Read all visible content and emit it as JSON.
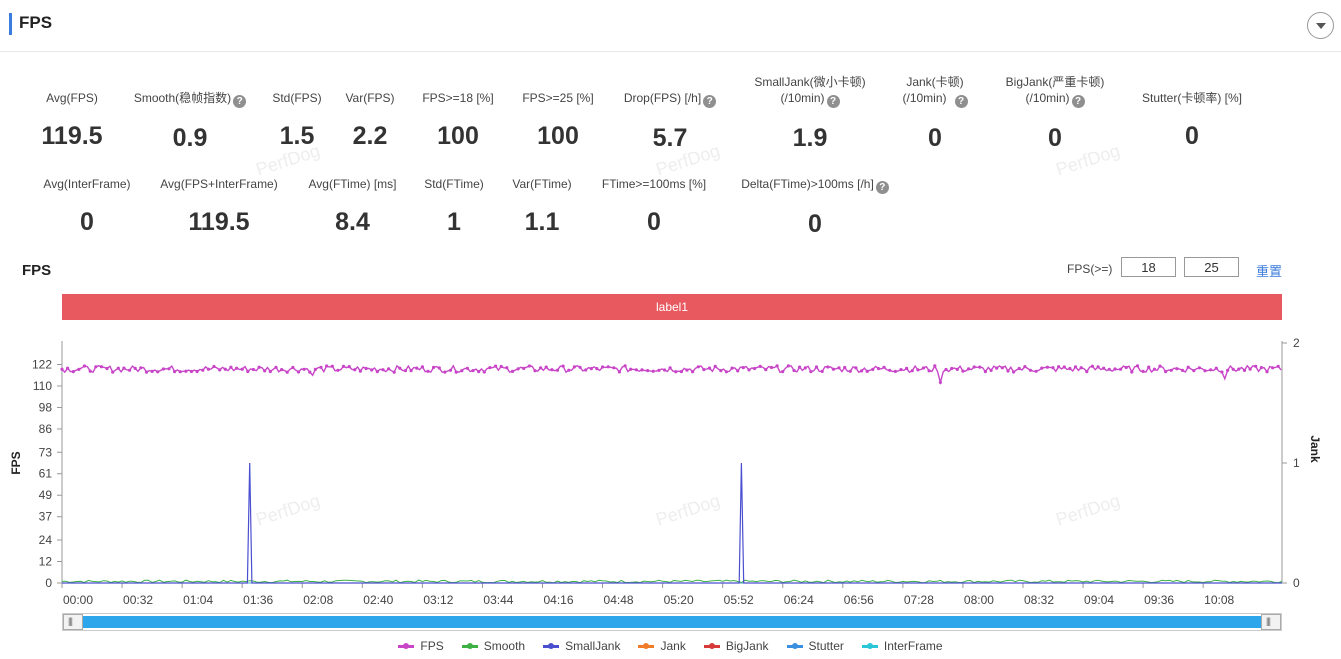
{
  "header": {
    "title": "FPS"
  },
  "stats_row1": [
    {
      "label": "Avg(FPS)",
      "value": "119.5",
      "help": false
    },
    {
      "label": "Smooth(稳帧指数)",
      "value": "0.9",
      "help": true
    },
    {
      "label": "Std(FPS)",
      "value": "1.5",
      "help": false
    },
    {
      "label": "Var(FPS)",
      "value": "2.2",
      "help": false
    },
    {
      "label": "FPS>=18 [%]",
      "value": "100",
      "help": false
    },
    {
      "label": "FPS>=25 [%]",
      "value": "100",
      "help": false
    },
    {
      "label": "Drop(FPS) [/h]",
      "value": "5.7",
      "help": true
    },
    {
      "label": "SmallJank(微小卡顿)",
      "label2": "(/10min)",
      "value": "1.9",
      "help": true
    },
    {
      "label": "Jank(卡顿)",
      "label2": "(/10min)",
      "value": "0",
      "help": true
    },
    {
      "label": "BigJank(严重卡顿)",
      "label2": "(/10min)",
      "value": "0",
      "help": true
    },
    {
      "label": "Stutter(卡顿率) [%]",
      "value": "0",
      "help": false
    }
  ],
  "stats_row2": [
    {
      "label": "Avg(InterFrame)",
      "value": "0",
      "help": false
    },
    {
      "label": "Avg(FPS+InterFrame)",
      "value": "119.5",
      "help": false
    },
    {
      "label": "Avg(FTime) [ms]",
      "value": "8.4",
      "help": false
    },
    {
      "label": "Std(FTime)",
      "value": "1",
      "help": false
    },
    {
      "label": "Var(FTime)",
      "value": "1.1",
      "help": false
    },
    {
      "label": "FTime>=100ms [%]",
      "value": "0",
      "help": false
    },
    {
      "label": "Delta(FTime)>100ms [/h]",
      "value": "0",
      "help": true
    }
  ],
  "watermark": "PerfDog",
  "chart_section": {
    "title": "FPS",
    "threshold_label": "FPS(>=)",
    "threshold1": "18",
    "threshold2": "25",
    "reset_label": "重置",
    "label_bar": "label1"
  },
  "chart_data": {
    "type": "line",
    "x_ticks": [
      "00:00",
      "00:32",
      "01:04",
      "01:36",
      "02:08",
      "02:40",
      "03:12",
      "03:44",
      "04:16",
      "04:48",
      "05:20",
      "05:52",
      "06:24",
      "06:56",
      "07:28",
      "08:00",
      "08:32",
      "09:04",
      "09:36",
      "10:08"
    ],
    "x_range_seconds": [
      0,
      650
    ],
    "ylabel": "FPS",
    "y_ticks": [
      0,
      12,
      24,
      37,
      49,
      61,
      73,
      86,
      98,
      110,
      122
    ],
    "ylim": [
      0,
      134
    ],
    "y2label": "Jank",
    "y2_ticks": [
      0,
      1,
      2
    ],
    "y2lim": [
      0,
      2
    ],
    "series": [
      {
        "name": "FPS",
        "color": "#c845c8",
        "axis": "left",
        "typical": 119.5,
        "min": 112,
        "max": 122
      },
      {
        "name": "Smooth",
        "color": "#3cb043",
        "axis": "left",
        "typical": 0.9
      },
      {
        "name": "SmallJank",
        "color": "#4a4fcf",
        "axis": "right",
        "spikes": [
          {
            "x": 100,
            "y": 1
          },
          {
            "x": 362,
            "y": 1
          }
        ]
      },
      {
        "name": "Jank",
        "color": "#f07c2a",
        "axis": "right",
        "values": 0
      },
      {
        "name": "BigJank",
        "color": "#d83a3a",
        "axis": "right",
        "values": 0
      },
      {
        "name": "Stutter",
        "color": "#3a8fe0",
        "axis": "left",
        "values": 0
      },
      {
        "name": "InterFrame",
        "color": "#2ac6d8",
        "axis": "left",
        "values": 0
      }
    ],
    "grid": false,
    "legend_position": "bottom"
  }
}
